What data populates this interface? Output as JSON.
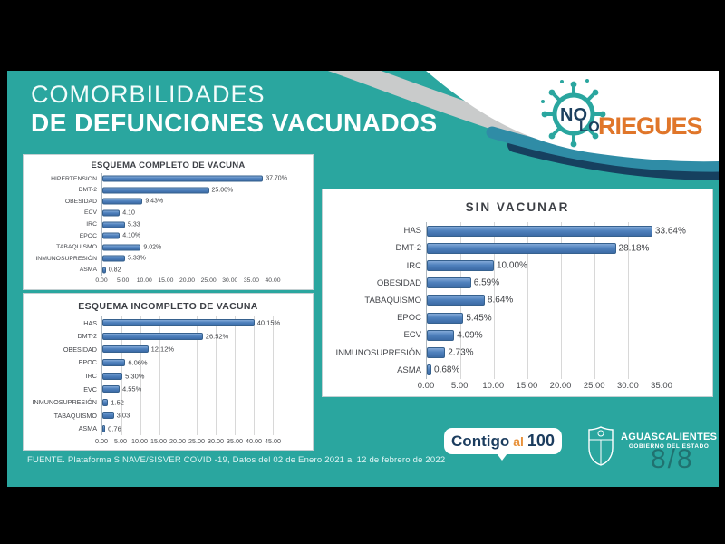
{
  "colors": {
    "background_teal": "#2aa69f",
    "letterbox_black": "#000000",
    "bar_blue": "#4f81bd",
    "bar_border": "#36618e",
    "accent_orange": "#e0762a",
    "accent_navy": "#1c3f5e",
    "swoosh_gray": "#c9cbcb",
    "band_blue": "#2f8ca6",
    "band_navy": "#16405f"
  },
  "header": {
    "title_line1": "COMORBILIDADES",
    "title_line2": "DE DEFUNCIONES VACUNADOS"
  },
  "logo_no_lo_riegues": {
    "no": "NO",
    "lo": "LO",
    "riegues": "RIEGUES",
    "icon": "virus-icon"
  },
  "chart_data": [
    {
      "type": "bar",
      "orientation": "horizontal",
      "title": "ESQUEMA COMPLETO DE VACUNA",
      "categories": [
        "HIPERTENSION",
        "DMT-2",
        "OBESIDAD",
        "ECV",
        "IRC",
        "EPOC",
        "TABAQUISMO",
        "INMUNOSUPRESIÓN",
        "ASMA"
      ],
      "values": [
        37.7,
        25.0,
        9.43,
        4.1,
        5.33,
        4.1,
        9.02,
        5.33,
        0.82
      ],
      "display_values": [
        "37.70%",
        "25.00%",
        "9.43%",
        "4.10",
        "5.33",
        "4.10%",
        "9.02%",
        "5.33%",
        "0.82"
      ],
      "xlabel": "",
      "ylabel": "",
      "xlim": [
        0,
        40
      ],
      "ticks": [
        "0.00",
        "5.00",
        "10.00",
        "15.00",
        "20.00",
        "25.00",
        "30.00",
        "35.00",
        "40.00"
      ],
      "grid": false,
      "legend": false
    },
    {
      "type": "bar",
      "orientation": "horizontal",
      "title": "ESQUEMA INCOMPLETO DE VACUNA",
      "categories": [
        "HAS",
        "DMT-2",
        "OBESIDAD",
        "EPOC",
        "IRC",
        "EVC",
        "INMUNOSUPRESIÓN",
        "TABAQUISMO",
        "ASMA"
      ],
      "values": [
        40.15,
        26.52,
        12.12,
        6.06,
        5.3,
        4.55,
        1.52,
        3.03,
        0.76
      ],
      "display_values": [
        "40.15%",
        "26.52%",
        "12.12%",
        "6.06%",
        "5.30%",
        "4.55%",
        "1.52",
        "3.03",
        "0.76"
      ],
      "xlabel": "",
      "ylabel": "",
      "xlim": [
        0,
        45
      ],
      "ticks": [
        "0.00",
        "5.00",
        "10.00",
        "15.00",
        "20.00",
        "25.00",
        "30.00",
        "35.00",
        "40.00",
        "45.00"
      ],
      "grid": true,
      "legend": false
    },
    {
      "type": "bar",
      "orientation": "horizontal",
      "title": "SIN VACUNAR",
      "categories": [
        "HAS",
        "DMT-2",
        "IRC",
        "OBESIDAD",
        "TABAQUISMO",
        "EPOC",
        "ECV",
        "INMUNOSUPRESIÓN",
        "ASMA"
      ],
      "values": [
        33.64,
        28.18,
        10.0,
        6.59,
        8.64,
        5.45,
        4.09,
        2.73,
        0.68
      ],
      "display_values": [
        "33.64%",
        "28.18%",
        "10.00%",
        "6.59%",
        "8.64%",
        "5.45%",
        "4.09%",
        "2.73%",
        "0.68%"
      ],
      "xlabel": "",
      "ylabel": "",
      "xlim": [
        0,
        35
      ],
      "ticks": [
        "0.00",
        "5.00",
        "10.00",
        "15.00",
        "20.00",
        "25.00",
        "30.00",
        "35.00"
      ],
      "grid": true,
      "legend": false
    }
  ],
  "footer": {
    "source": "FUENTE. Plataforma SINAVE/SISVER COVID -19, Datos del 02 de Enero 2021 al 12 de febrero de 2022",
    "contigo_logo": {
      "word1": "Contigo",
      "word2": "al",
      "word3": "100"
    },
    "government_logo": {
      "name": "AGUASCALIENTES",
      "subtitle": "GOBIERNO DEL ESTADO",
      "icon": "coat-of-arms-icon"
    },
    "page_indicator": "8/8"
  }
}
